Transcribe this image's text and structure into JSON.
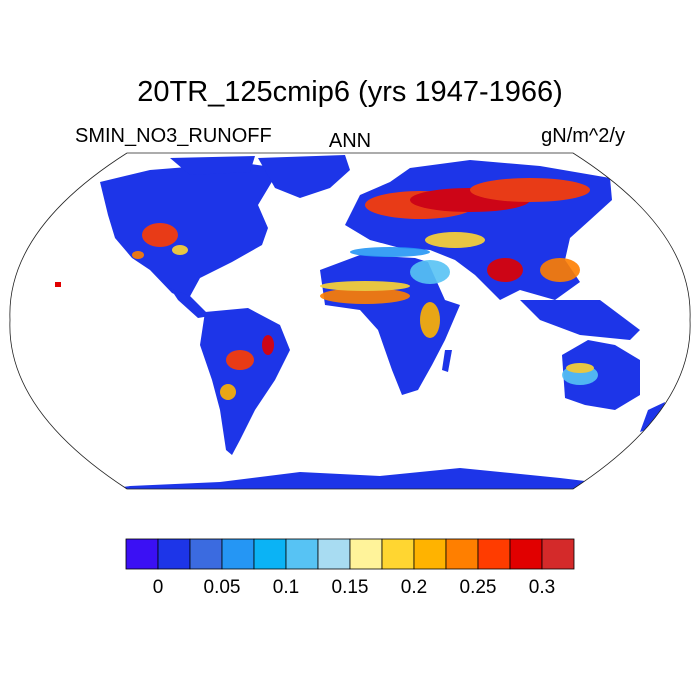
{
  "title": "20TR_125cmip6 (yrs 1947-1966)",
  "variable": "SMIN_NO3_RUNOFF",
  "season": "ANN",
  "units": "gN/m^2/y",
  "colorbar": {
    "colors": [
      "#3b10f4",
      "#1d35e8",
      "#3b6be0",
      "#2596f4",
      "#0bb3f5",
      "#57c3f4",
      "#a8dcf2",
      "#fff39a",
      "#ffd631",
      "#ffb300",
      "#ff7f00",
      "#ff3c00",
      "#e10000",
      "#d42a2a"
    ],
    "tick_labels": [
      "0",
      "0.05",
      "0.1",
      "0.15",
      "0.2",
      "0.25",
      "0.3"
    ]
  }
}
